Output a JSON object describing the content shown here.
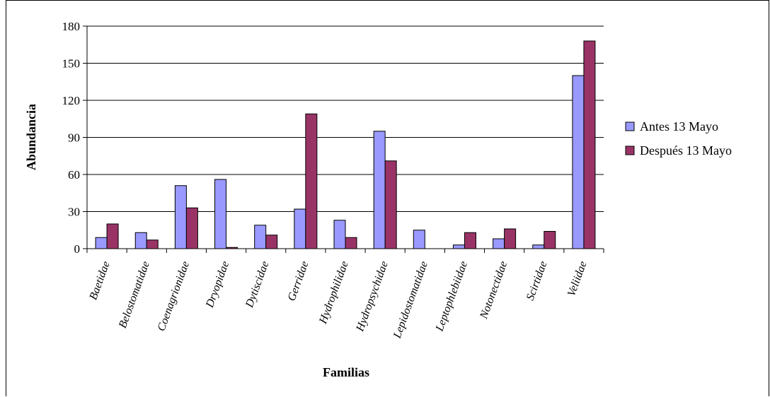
{
  "chart_data": {
    "type": "bar",
    "title": "",
    "xlabel": "Familias",
    "ylabel": "Abundancia",
    "ylim": [
      0,
      180
    ],
    "yticks": [
      0,
      30,
      60,
      90,
      120,
      150,
      180
    ],
    "grid": true,
    "legend_position": "right",
    "categories": [
      "Baetidae",
      "Belostomatidae",
      "Coenagrionidae",
      "Dryopidae",
      "Dytiscidae",
      "Gerridae",
      "Hydrophilidae",
      "Hydropsychidae",
      "Lepidostomatidae",
      "Leptophlebiidae",
      "Notonectidae",
      "Scirtidae",
      "Veliidae"
    ],
    "series": [
      {
        "name": "Antes 13 Mayo",
        "color": "#9999ff",
        "values": [
          9,
          13,
          51,
          56,
          19,
          32,
          23,
          95,
          15,
          3,
          8,
          3,
          140
        ]
      },
      {
        "name": "Después 13 Mayo",
        "color": "#993366",
        "values": [
          20,
          7,
          33,
          1,
          11,
          109,
          9,
          71,
          0,
          13,
          16,
          14,
          168
        ]
      }
    ]
  }
}
